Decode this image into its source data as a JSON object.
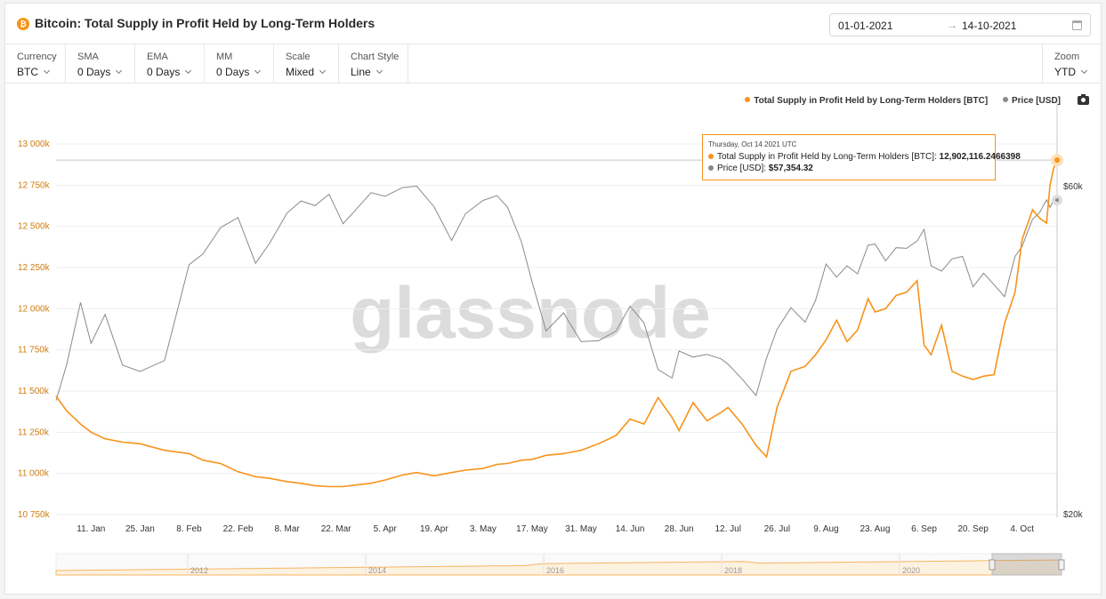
{
  "header": {
    "logo_glyph": "₿",
    "title": "Bitcoin: Total Supply in Profit Held by Long-Term Holders",
    "date_from": "01-01-2021",
    "date_arrow": "→",
    "date_to": "14-10-2021",
    "calendar_icon": "calendar-icon"
  },
  "controls": {
    "currency": {
      "label": "Currency",
      "value": "BTC"
    },
    "sma": {
      "label": "SMA",
      "value": "0 Days"
    },
    "ema": {
      "label": "EMA",
      "value": "0 Days"
    },
    "mm": {
      "label": "MM",
      "value": "0 Days"
    },
    "scale": {
      "label": "Scale",
      "value": "Mixed"
    },
    "chart_style": {
      "label": "Chart Style",
      "value": "Line"
    },
    "zoom": {
      "label": "Zoom",
      "value": "YTD"
    }
  },
  "legend": {
    "series1": "Total Supply in Profit Held by Long-Term Holders [BTC]",
    "series2": "Price [USD]",
    "camera_icon": "camera-icon"
  },
  "watermark": "glassnode",
  "tooltip": {
    "date": "Thursday, Oct 14 2021 UTC",
    "row1_label": "Total Supply in Profit Held by Long-Term Holders [BTC]: ",
    "row1_value": "12,902,116.2466398",
    "row2_label": "Price [USD]: ",
    "row2_value": "$57,354.32"
  },
  "colors": {
    "supply": "#f7931a",
    "price": "#8a8a8a",
    "axis_left_text": "#d07a0a",
    "grid": "#eeeeee"
  },
  "chart_data": {
    "type": "line",
    "title": "Bitcoin: Total Supply in Profit Held by Long-Term Holders",
    "x": [
      "2021-01-01",
      "2021-01-04",
      "2021-01-08",
      "2021-01-11",
      "2021-01-15",
      "2021-01-20",
      "2021-01-25",
      "2021-02-01",
      "2021-02-08",
      "2021-02-12",
      "2021-02-17",
      "2021-02-22",
      "2021-02-27",
      "2021-03-03",
      "2021-03-08",
      "2021-03-12",
      "2021-03-16",
      "2021-03-20",
      "2021-03-24",
      "2021-03-28",
      "2021-04-01",
      "2021-04-05",
      "2021-04-10",
      "2021-04-14",
      "2021-04-19",
      "2021-04-24",
      "2021-04-28",
      "2021-05-03",
      "2021-05-07",
      "2021-05-10",
      "2021-05-14",
      "2021-05-17",
      "2021-05-21",
      "2021-05-26",
      "2021-05-31",
      "2021-06-05",
      "2021-06-10",
      "2021-06-14",
      "2021-06-18",
      "2021-06-22",
      "2021-06-26",
      "2021-06-28",
      "2021-07-02",
      "2021-07-06",
      "2021-07-10",
      "2021-07-12",
      "2021-07-16",
      "2021-07-20",
      "2021-07-23",
      "2021-07-26",
      "2021-07-30",
      "2021-08-03",
      "2021-08-06",
      "2021-08-09",
      "2021-08-12",
      "2021-08-15",
      "2021-08-18",
      "2021-08-21",
      "2021-08-23",
      "2021-08-26",
      "2021-08-29",
      "2021-09-01",
      "2021-09-04",
      "2021-09-06",
      "2021-09-08",
      "2021-09-11",
      "2021-09-14",
      "2021-09-17",
      "2021-09-20",
      "2021-09-23",
      "2021-09-26",
      "2021-09-29",
      "2021-10-02",
      "2021-10-04",
      "2021-10-07",
      "2021-10-09",
      "2021-10-11",
      "2021-10-12",
      "2021-10-13",
      "2021-10-14"
    ],
    "series": [
      {
        "name": "Total Supply in Profit Held by Long-Term Holders [BTC]",
        "axis": "left",
        "values": [
          11470000,
          11380000,
          11300000,
          11250000,
          11210000,
          11190000,
          11180000,
          11140000,
          11120000,
          11080000,
          11060000,
          11010000,
          10980000,
          10970000,
          10950000,
          10940000,
          10925000,
          10920000,
          10920000,
          10930000,
          10940000,
          10960000,
          10990000,
          11005000,
          10985000,
          11005000,
          11020000,
          11030000,
          11055000,
          11060000,
          11080000,
          11085000,
          11110000,
          11120000,
          11140000,
          11180000,
          11230000,
          11330000,
          11300000,
          11460000,
          11340000,
          11260000,
          11430000,
          11320000,
          11370000,
          11400000,
          11300000,
          11170000,
          11100000,
          11400000,
          11620000,
          11650000,
          11720000,
          11810000,
          11930000,
          11800000,
          11870000,
          12060000,
          11980000,
          12000000,
          12080000,
          12100000,
          12170000,
          11780000,
          11720000,
          11900000,
          11620000,
          11590000,
          11570000,
          11590000,
          11600000,
          11910000,
          12100000,
          12420000,
          12600000,
          12550000,
          12520000,
          12750000,
          12850000,
          12902116.2466398
        ]
      },
      {
        "name": "Price [USD]",
        "axis": "right",
        "values": [
          29300,
          33000,
          40700,
          35500,
          39100,
          33000,
          32300,
          33500,
          46200,
          47900,
          52300,
          54100,
          46400,
          49600,
          54900,
          57200,
          56300,
          58500,
          53000,
          55800,
          58800,
          58100,
          59800,
          60100,
          56100,
          50100,
          54800,
          57300,
          58200,
          56000,
          49800,
          43600,
          37000,
          39300,
          35700,
          35800,
          37000,
          40200,
          38000,
          32500,
          31600,
          34600,
          33900,
          34200,
          33700,
          33100,
          31500,
          29800,
          33800,
          37200,
          40000,
          38100,
          41000,
          46300,
          44300,
          46000,
          44800,
          49300,
          49500,
          46800,
          48900,
          48800,
          50000,
          52000,
          46000,
          45200,
          47100,
          47500,
          42900,
          44900,
          43200,
          41500,
          47500,
          49100,
          53800,
          55000,
          57400,
          56000,
          57300,
          57354.32
        ]
      }
    ],
    "y_left": {
      "ticks": [
        "10 750k",
        "11 000k",
        "11 250k",
        "11 500k",
        "11 750k",
        "12 000k",
        "12 250k",
        "12 500k",
        "12 750k",
        "13 000k"
      ],
      "range": [
        10750000,
        13000000
      ]
    },
    "y_right": {
      "ticks": [
        "$20k",
        "$60k"
      ],
      "scale": "log",
      "range": [
        20000,
        60000
      ]
    },
    "x_ticks": [
      "11. Jan",
      "25. Jan",
      "8. Feb",
      "22. Feb",
      "8. Mar",
      "22. Mar",
      "5. Apr",
      "19. Apr",
      "3. May",
      "17. May",
      "31. May",
      "14. Jun",
      "28. Jun",
      "12. Jul",
      "26. Jul",
      "9. Aug",
      "23. Aug",
      "6. Sep",
      "20. Sep",
      "4. Oct"
    ],
    "navigator_ticks": [
      "2012",
      "2014",
      "2016",
      "2018",
      "2020"
    ],
    "grid": true,
    "legend_position": "top-right"
  }
}
